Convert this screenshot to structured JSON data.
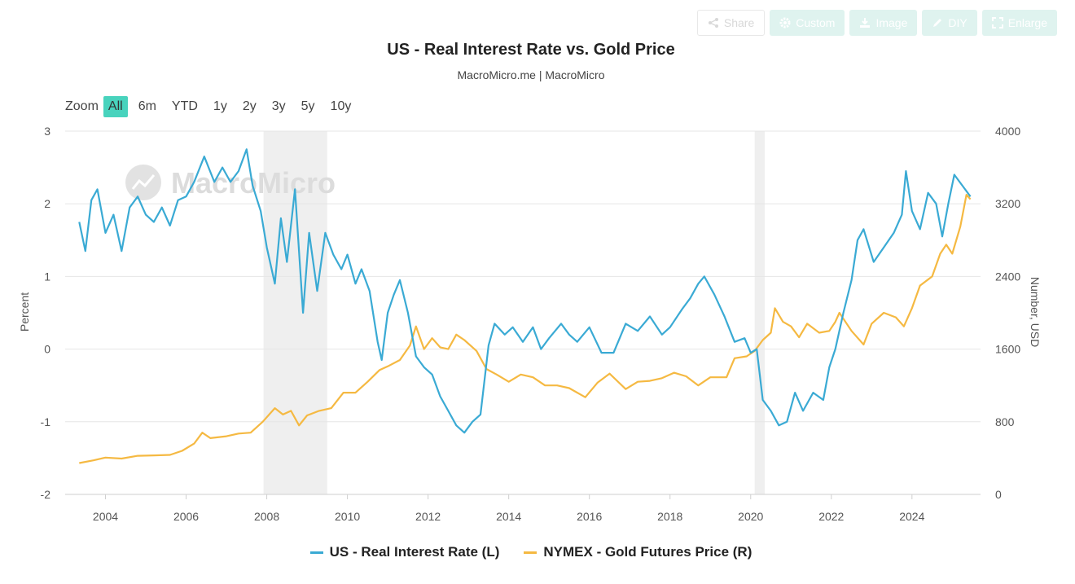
{
  "toolbar": {
    "share": "Share",
    "custom": "Custom",
    "image": "Image",
    "diy": "DIY",
    "enlarge": "Enlarge"
  },
  "zoom": {
    "label": "Zoom",
    "options": [
      "All",
      "6m",
      "YTD",
      "1y",
      "2y",
      "3y",
      "5y",
      "10y"
    ],
    "active": "All"
  },
  "watermark": "MacroMicro",
  "colors": {
    "rate": "#3aaad4",
    "gold": "#f5b942",
    "recession": "#efefef",
    "accent": "#48d3bd"
  },
  "chart_data": {
    "type": "line",
    "title": "US - Real Interest Rate vs. Gold Price",
    "subtitle": "MacroMicro.me | MacroMicro",
    "x_ticks": [
      "2004",
      "2006",
      "2008",
      "2010",
      "2012",
      "2014",
      "2016",
      "2018",
      "2020",
      "2022",
      "2024"
    ],
    "xlim": [
      2003.0,
      2025.7
    ],
    "y_left": {
      "label": "Percent",
      "lim": [
        -2,
        3
      ],
      "ticks": [
        "3",
        "2",
        "1",
        "0",
        "-1",
        "-2"
      ]
    },
    "y_right": {
      "label": "Number, USD",
      "lim": [
        0,
        4000
      ],
      "ticks": [
        "4000",
        "3200",
        "2400",
        "1600",
        "800",
        "0"
      ]
    },
    "grid": true,
    "legend_position": "bottom",
    "recessions": [
      [
        2007.92,
        2009.5
      ],
      [
        2020.1,
        2020.35
      ]
    ],
    "series": [
      {
        "name": "US - Real Interest Rate (L)",
        "axis": "left",
        "points": [
          [
            2003.35,
            1.75
          ],
          [
            2003.5,
            1.35
          ],
          [
            2003.65,
            2.05
          ],
          [
            2003.8,
            2.2
          ],
          [
            2004.0,
            1.6
          ],
          [
            2004.2,
            1.85
          ],
          [
            2004.4,
            1.35
          ],
          [
            2004.6,
            1.95
          ],
          [
            2004.8,
            2.1
          ],
          [
            2005.0,
            1.85
          ],
          [
            2005.2,
            1.75
          ],
          [
            2005.4,
            1.95
          ],
          [
            2005.6,
            1.7
          ],
          [
            2005.8,
            2.05
          ],
          [
            2006.0,
            2.1
          ],
          [
            2006.2,
            2.3
          ],
          [
            2006.45,
            2.65
          ],
          [
            2006.7,
            2.3
          ],
          [
            2006.9,
            2.5
          ],
          [
            2007.1,
            2.3
          ],
          [
            2007.3,
            2.45
          ],
          [
            2007.5,
            2.75
          ],
          [
            2007.65,
            2.25
          ],
          [
            2007.85,
            1.9
          ],
          [
            2008.0,
            1.4
          ],
          [
            2008.2,
            0.9
          ],
          [
            2008.35,
            1.8
          ],
          [
            2008.5,
            1.2
          ],
          [
            2008.7,
            2.2
          ],
          [
            2008.9,
            0.5
          ],
          [
            2009.05,
            1.6
          ],
          [
            2009.25,
            0.8
          ],
          [
            2009.45,
            1.6
          ],
          [
            2009.65,
            1.3
          ],
          [
            2009.85,
            1.1
          ],
          [
            2010.0,
            1.3
          ],
          [
            2010.2,
            0.9
          ],
          [
            2010.35,
            1.1
          ],
          [
            2010.55,
            0.8
          ],
          [
            2010.75,
            0.1
          ],
          [
            2010.85,
            -0.15
          ],
          [
            2011.0,
            0.5
          ],
          [
            2011.15,
            0.75
          ],
          [
            2011.3,
            0.95
          ],
          [
            2011.5,
            0.5
          ],
          [
            2011.7,
            -0.1
          ],
          [
            2011.9,
            -0.25
          ],
          [
            2012.1,
            -0.35
          ],
          [
            2012.3,
            -0.65
          ],
          [
            2012.5,
            -0.85
          ],
          [
            2012.7,
            -1.05
          ],
          [
            2012.9,
            -1.15
          ],
          [
            2013.1,
            -1.0
          ],
          [
            2013.3,
            -0.9
          ],
          [
            2013.5,
            0.05
          ],
          [
            2013.65,
            0.35
          ],
          [
            2013.9,
            0.2
          ],
          [
            2014.1,
            0.3
          ],
          [
            2014.35,
            0.1
          ],
          [
            2014.6,
            0.3
          ],
          [
            2014.8,
            0.0
          ],
          [
            2015.0,
            0.15
          ],
          [
            2015.3,
            0.35
          ],
          [
            2015.5,
            0.2
          ],
          [
            2015.7,
            0.1
          ],
          [
            2016.0,
            0.3
          ],
          [
            2016.3,
            -0.05
          ],
          [
            2016.6,
            -0.05
          ],
          [
            2016.9,
            0.35
          ],
          [
            2017.2,
            0.25
          ],
          [
            2017.5,
            0.45
          ],
          [
            2017.8,
            0.2
          ],
          [
            2018.0,
            0.3
          ],
          [
            2018.3,
            0.55
          ],
          [
            2018.5,
            0.7
          ],
          [
            2018.7,
            0.9
          ],
          [
            2018.85,
            1.0
          ],
          [
            2019.1,
            0.75
          ],
          [
            2019.35,
            0.45
          ],
          [
            2019.6,
            0.1
          ],
          [
            2019.85,
            0.15
          ],
          [
            2020.0,
            -0.05
          ],
          [
            2020.15,
            0.0
          ],
          [
            2020.3,
            -0.7
          ],
          [
            2020.5,
            -0.85
          ],
          [
            2020.7,
            -1.05
          ],
          [
            2020.9,
            -1.0
          ],
          [
            2021.1,
            -0.6
          ],
          [
            2021.3,
            -0.85
          ],
          [
            2021.55,
            -0.6
          ],
          [
            2021.8,
            -0.7
          ],
          [
            2021.95,
            -0.25
          ],
          [
            2022.1,
            0.0
          ],
          [
            2022.3,
            0.5
          ],
          [
            2022.5,
            0.95
          ],
          [
            2022.65,
            1.5
          ],
          [
            2022.8,
            1.65
          ],
          [
            2023.05,
            1.2
          ],
          [
            2023.3,
            1.4
          ],
          [
            2023.55,
            1.6
          ],
          [
            2023.75,
            1.85
          ],
          [
            2023.85,
            2.45
          ],
          [
            2024.0,
            1.9
          ],
          [
            2024.2,
            1.65
          ],
          [
            2024.4,
            2.15
          ],
          [
            2024.6,
            2.0
          ],
          [
            2024.75,
            1.55
          ],
          [
            2024.9,
            2.0
          ],
          [
            2025.05,
            2.4
          ],
          [
            2025.25,
            2.25
          ],
          [
            2025.45,
            2.1
          ]
        ]
      },
      {
        "name": "NYMEX - Gold Futures Price (R)",
        "axis": "right",
        "points": [
          [
            2003.35,
            345
          ],
          [
            2003.7,
            375
          ],
          [
            2004.0,
            405
          ],
          [
            2004.4,
            395
          ],
          [
            2004.8,
            425
          ],
          [
            2005.2,
            430
          ],
          [
            2005.6,
            435
          ],
          [
            2005.9,
            480
          ],
          [
            2006.2,
            560
          ],
          [
            2006.4,
            680
          ],
          [
            2006.6,
            620
          ],
          [
            2007.0,
            640
          ],
          [
            2007.3,
            670
          ],
          [
            2007.6,
            680
          ],
          [
            2007.9,
            800
          ],
          [
            2008.2,
            950
          ],
          [
            2008.4,
            880
          ],
          [
            2008.6,
            920
          ],
          [
            2008.8,
            760
          ],
          [
            2009.0,
            870
          ],
          [
            2009.3,
            920
          ],
          [
            2009.6,
            950
          ],
          [
            2009.9,
            1120
          ],
          [
            2010.2,
            1120
          ],
          [
            2010.5,
            1240
          ],
          [
            2010.8,
            1370
          ],
          [
            2011.0,
            1410
          ],
          [
            2011.3,
            1480
          ],
          [
            2011.55,
            1640
          ],
          [
            2011.7,
            1850
          ],
          [
            2011.9,
            1600
          ],
          [
            2012.1,
            1720
          ],
          [
            2012.3,
            1620
          ],
          [
            2012.5,
            1600
          ],
          [
            2012.7,
            1760
          ],
          [
            2012.9,
            1700
          ],
          [
            2013.2,
            1580
          ],
          [
            2013.45,
            1380
          ],
          [
            2013.7,
            1320
          ],
          [
            2014.0,
            1240
          ],
          [
            2014.3,
            1320
          ],
          [
            2014.6,
            1290
          ],
          [
            2014.9,
            1200
          ],
          [
            2015.2,
            1200
          ],
          [
            2015.5,
            1170
          ],
          [
            2015.9,
            1070
          ],
          [
            2016.2,
            1230
          ],
          [
            2016.5,
            1330
          ],
          [
            2016.9,
            1160
          ],
          [
            2017.2,
            1240
          ],
          [
            2017.5,
            1250
          ],
          [
            2017.8,
            1280
          ],
          [
            2018.1,
            1340
          ],
          [
            2018.4,
            1300
          ],
          [
            2018.7,
            1200
          ],
          [
            2019.0,
            1290
          ],
          [
            2019.4,
            1290
          ],
          [
            2019.6,
            1500
          ],
          [
            2019.9,
            1520
          ],
          [
            2020.1,
            1580
          ],
          [
            2020.3,
            1700
          ],
          [
            2020.5,
            1780
          ],
          [
            2020.6,
            2050
          ],
          [
            2020.8,
            1900
          ],
          [
            2021.0,
            1850
          ],
          [
            2021.2,
            1730
          ],
          [
            2021.4,
            1880
          ],
          [
            2021.7,
            1780
          ],
          [
            2021.95,
            1800
          ],
          [
            2022.1,
            1900
          ],
          [
            2022.2,
            2000
          ],
          [
            2022.5,
            1800
          ],
          [
            2022.8,
            1650
          ],
          [
            2023.0,
            1880
          ],
          [
            2023.3,
            2000
          ],
          [
            2023.6,
            1950
          ],
          [
            2023.8,
            1850
          ],
          [
            2024.0,
            2050
          ],
          [
            2024.2,
            2300
          ],
          [
            2024.5,
            2400
          ],
          [
            2024.7,
            2650
          ],
          [
            2024.85,
            2750
          ],
          [
            2025.0,
            2650
          ],
          [
            2025.2,
            2950
          ],
          [
            2025.35,
            3300
          ],
          [
            2025.45,
            3250
          ]
        ]
      }
    ]
  }
}
